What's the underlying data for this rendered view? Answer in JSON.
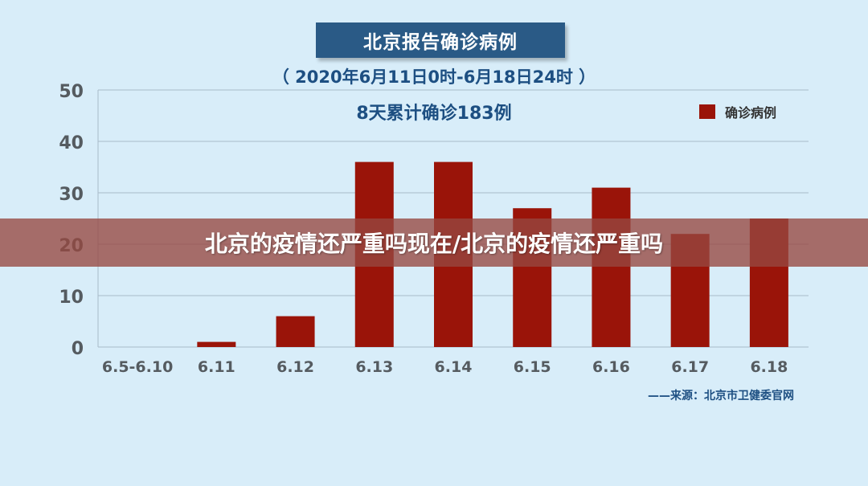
{
  "overlay_headline": "北京的疫情还严重吗现在/北京的疫情还严重吗",
  "header": {
    "title": "北京报告确诊病例",
    "subtitle": "（ 2020年6月11日0时-6月18日24时 ）",
    "total": "8天累计确诊183例"
  },
  "source_note": "——来源：北京市卫健委官网",
  "colors": {
    "background": "#d8edf9",
    "bar": "#9a1409",
    "title_box": "#2a5a86",
    "text_blue": "#1d4f82",
    "overlay": "#96483f"
  },
  "chart_data": {
    "type": "bar",
    "categories": [
      "6.5-6.10",
      "6.11",
      "6.12",
      "6.13",
      "6.14",
      "6.15",
      "6.16",
      "6.17",
      "6.18"
    ],
    "series": [
      {
        "name": "确诊病例",
        "values": [
          0,
          1,
          6,
          36,
          36,
          27,
          31,
          22,
          25
        ]
      }
    ],
    "yticks": [
      "0",
      "10",
      "20",
      "30",
      "40",
      "50"
    ],
    "ylim": [
      0,
      50
    ],
    "grid": true,
    "legend_position": "top-right",
    "title": "北京报告确诊病例"
  }
}
